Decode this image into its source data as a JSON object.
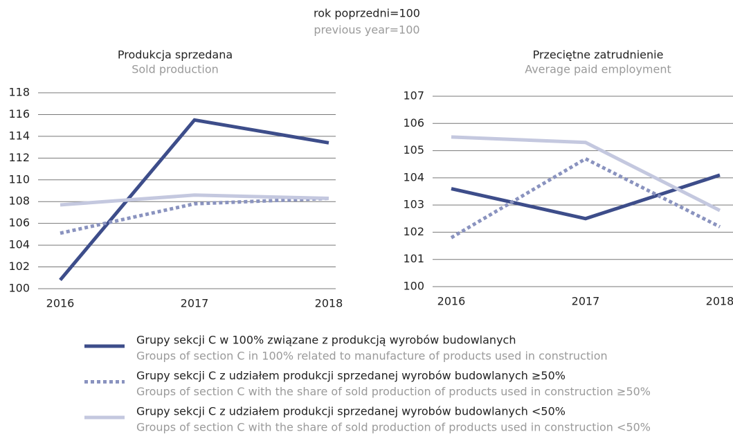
{
  "title": "rok poprzedni=100",
  "subtitle": "previous year=100",
  "legend": [
    {
      "name": "Grupy sekcji C w 100% związane z produkcją wyrobów budowlanych",
      "name_en": "Groups of section C in 100% related to manufacture of products used in construction",
      "color": "#3d4d8a",
      "dashed": false
    },
    {
      "name": "Grupy sekcji C z udziałem produkcji sprzedanej wyrobów budowlanych ≥50%",
      "name_en": "Groups of section C with the share of sold production of products used in construction ≥50%",
      "color": "#8a93bf",
      "dashed": true
    },
    {
      "name": "Grupy sekcji C z udziałem produkcji sprzedanej wyrobów budowlanych <50%",
      "name_en": "Groups of section C with the share of sold production of products used in construction <50%",
      "color": "#c4c8df",
      "dashed": false
    }
  ],
  "chart_data": [
    {
      "type": "line",
      "title": "Produkcja sprzedana",
      "subtitle": "Sold production",
      "categories": [
        "2016",
        "2017",
        "2018"
      ],
      "series": [
        {
          "values": [
            100.8,
            115.5,
            113.4
          ]
        },
        {
          "values": [
            105.1,
            107.8,
            108.3
          ]
        },
        {
          "values": [
            107.7,
            108.6,
            108.3
          ]
        }
      ],
      "ylim": [
        100,
        118
      ],
      "yticks": [
        100,
        102,
        104,
        106,
        108,
        110,
        112,
        114,
        116,
        118
      ],
      "grid": true
    },
    {
      "type": "line",
      "title": "Przeciętne zatrudnienie",
      "subtitle": "Average paid employment",
      "categories": [
        "2016",
        "2017",
        "2018"
      ],
      "series": [
        {
          "values": [
            103.6,
            102.5,
            104.1
          ]
        },
        {
          "values": [
            101.8,
            104.7,
            102.2
          ]
        },
        {
          "values": [
            105.5,
            105.3,
            102.8
          ]
        }
      ],
      "ylim": [
        100,
        107
      ],
      "yticks": [
        100,
        101,
        102,
        103,
        104,
        105,
        106,
        107
      ],
      "grid": true
    }
  ]
}
